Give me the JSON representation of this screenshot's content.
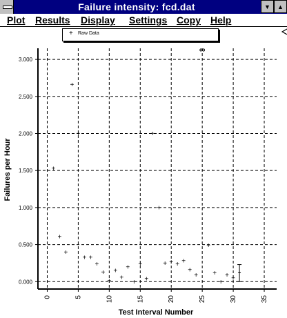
{
  "window": {
    "title": "Failure intensity:  fcd.dat",
    "minimize_glyph": "▼",
    "maximize_glyph": "▲"
  },
  "menu": {
    "plot": "Plot",
    "results": "Results",
    "display": "Display",
    "settings": "Settings",
    "copy": "Copy",
    "help": "Help"
  },
  "legend": {
    "marker": "+",
    "label": "Raw Data"
  },
  "chart_data": {
    "type": "scatter",
    "xlabel": "Test Interval Number",
    "ylabel": "Failures per Hour",
    "xlim": [
      -1.5,
      37
    ],
    "ylim": [
      -0.1,
      3.15
    ],
    "xticks": [
      0,
      5,
      10,
      15,
      20,
      25,
      30,
      35
    ],
    "yticks": [
      0,
      0.5,
      1.0,
      1.5,
      2.0,
      2.5,
      3.0
    ],
    "ytick_labels": [
      "0.000",
      "0.500",
      "1.000",
      "1.500",
      "2.000",
      "2.500",
      "3.000"
    ],
    "grid": true,
    "series": [
      {
        "name": "Raw Data",
        "marker": "+",
        "x": [
          1,
          2,
          3,
          4,
          5,
          6,
          7,
          8,
          9,
          10,
          11,
          12,
          13,
          14,
          15,
          16,
          17,
          18,
          19,
          20,
          21,
          22,
          23,
          24,
          26,
          27,
          28,
          29,
          30
        ],
        "y": [
          1.53,
          0.61,
          0.4,
          2.66,
          2.0,
          0.33,
          0.33,
          0.24,
          0.13,
          0.01,
          0.15,
          0.06,
          0.2,
          0.0,
          0.24,
          0.04,
          2.0,
          1.0,
          0.25,
          0.27,
          0.24,
          0.28,
          0.16,
          0.09,
          0.49,
          0.12,
          0.0,
          0.09,
          0.05
        ]
      }
    ],
    "infinite_marker": {
      "x": 25,
      "symbol": "∞"
    },
    "error_bar": {
      "x": 31,
      "low": 0.0,
      "high": 0.23,
      "center": 0.12
    }
  }
}
